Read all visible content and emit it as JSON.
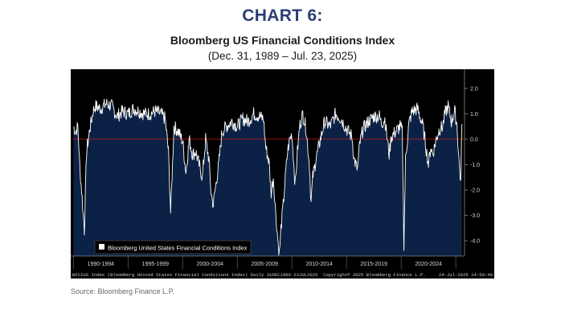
{
  "header": {
    "chart_label": "CHART 6:",
    "title": "Bloomberg US Financial Conditions Index",
    "subtitle": "(Dec. 31, 1989 – Jul. 23, 2025)"
  },
  "terminal_footer": {
    "left": "BFCIUS Index (Bloomberg United States Financial Conditions Index)  Daily 31DEC1989-23JUL2025",
    "center": "Copyright© 2025 Bloomberg Finance L.P.",
    "right": "24-Jul-2025 14:50:48"
  },
  "source": "Source: Bloomberg Finance L.P.",
  "colors": {
    "accent_title": "#2b3e75",
    "background": "#000000",
    "area_fill": "#0b2246",
    "line": "#ffffff",
    "zero_line": "#d01818"
  },
  "chart_data": {
    "type": "area",
    "legend": [
      "Bloomberg United States Financial Conditions Index"
    ],
    "legend_position": "bottom-left",
    "x_tick_labels": [
      "1990-1994",
      "1995-1999",
      "2000-2004",
      "2005-2009",
      "2010-2014",
      "2015-2019",
      "2020-2024"
    ],
    "y_ticks": [
      "2.0",
      "1.0",
      "0.0",
      "-1.0",
      "-2.0",
      "-3.0",
      "-4.0"
    ],
    "y_tick_values": [
      2,
      1,
      0,
      -1,
      -2,
      -3,
      -4
    ],
    "ylim": [
      -4.6,
      2.5
    ],
    "xlim": [
      1989.9,
      2025.8
    ],
    "reference_line": 0,
    "series": [
      {
        "name": "Bloomberg United States Financial Conditions Index",
        "x": [
          1990.0,
          1990.2,
          1990.4,
          1990.6,
          1990.8,
          1991.0,
          1991.2,
          1991.5,
          1991.8,
          1992.0,
          1992.5,
          1993.0,
          1993.5,
          1994.0,
          1994.5,
          1995.0,
          1995.5,
          1996.0,
          1996.5,
          1997.0,
          1997.5,
          1998.0,
          1998.4,
          1998.7,
          1998.9,
          1999.2,
          1999.6,
          2000.0,
          2000.3,
          2000.6,
          2000.9,
          2001.2,
          2001.5,
          2001.8,
          2002.1,
          2002.4,
          2002.6,
          2002.8,
          2003.0,
          2003.3,
          2003.6,
          2004.0,
          2004.5,
          2005.0,
          2005.5,
          2006.0,
          2006.5,
          2007.0,
          2007.4,
          2007.6,
          2007.9,
          2008.1,
          2008.3,
          2008.5,
          2008.7,
          2008.85,
          2009.0,
          2009.2,
          2009.4,
          2009.6,
          2009.8,
          2010.0,
          2010.3,
          2010.5,
          2010.7,
          2011.0,
          2011.3,
          2011.6,
          2011.75,
          2011.9,
          2012.2,
          2012.6,
          2013.0,
          2013.5,
          2014.0,
          2014.5,
          2015.0,
          2015.5,
          2015.7,
          2016.0,
          2016.2,
          2016.5,
          2017.0,
          2017.5,
          2018.0,
          2018.2,
          2018.5,
          2018.9,
          2019.1,
          2019.5,
          2019.9,
          2020.1,
          2020.2,
          2020.25,
          2020.4,
          2020.7,
          2021.0,
          2021.5,
          2022.0,
          2022.3,
          2022.5,
          2022.7,
          2022.9,
          2023.2,
          2023.5,
          2023.8,
          2024.0,
          2024.3,
          2024.6,
          2024.9,
          2025.1,
          2025.3,
          2025.45,
          2025.56
        ],
        "values": [
          0.5,
          0.3,
          0.5,
          -1.2,
          -2.3,
          -3.6,
          -0.5,
          0.4,
          1.1,
          1.3,
          1.2,
          1.4,
          1.3,
          0.9,
          1.1,
          1.0,
          1.2,
          1.1,
          1.0,
          1.0,
          1.1,
          1.0,
          0.8,
          -0.5,
          -2.9,
          0.5,
          0.3,
          -0.1,
          -1.3,
          0.0,
          -0.6,
          -0.5,
          -1.0,
          -1.5,
          0.0,
          -0.8,
          -2.1,
          -2.6,
          -1.9,
          -1.0,
          0.3,
          0.5,
          0.7,
          0.5,
          0.8,
          0.7,
          1.0,
          0.9,
          0.8,
          -0.3,
          -0.9,
          -2.1,
          -1.5,
          -2.8,
          -3.9,
          -4.5,
          -3.5,
          -2.6,
          -1.5,
          -0.5,
          0.0,
          0.2,
          -1.8,
          -0.5,
          0.5,
          1.0,
          0.4,
          -1.0,
          -2.5,
          -1.5,
          -0.8,
          0.0,
          0.7,
          0.5,
          1.0,
          0.8,
          0.4,
          0.1,
          -0.8,
          -1.2,
          -0.2,
          0.4,
          0.7,
          0.9,
          0.9,
          0.6,
          0.8,
          -0.6,
          0.1,
          0.3,
          0.5,
          0.3,
          -2.5,
          -4.3,
          -0.8,
          0.6,
          1.1,
          1.2,
          0.5,
          -0.4,
          -1.0,
          -0.3,
          -0.6,
          0.0,
          0.4,
          0.5,
          1.0,
          1.3,
          0.7,
          1.1,
          0.6,
          -0.9,
          -1.7,
          0.6
        ]
      }
    ]
  }
}
